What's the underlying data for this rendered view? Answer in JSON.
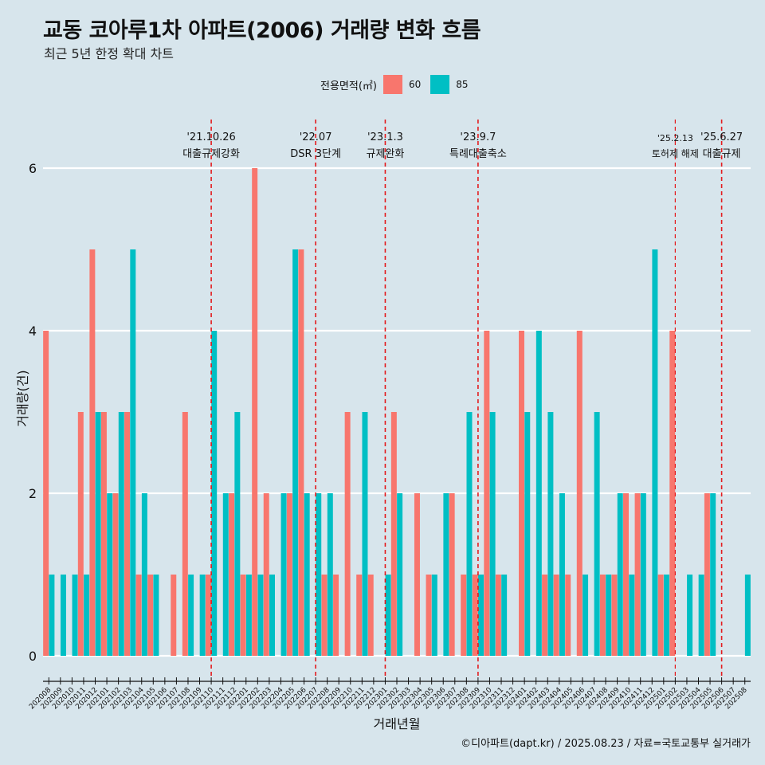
{
  "header": {
    "title": "교동 코아루1차 아파트(2006) 거래량 변화 흐름",
    "subtitle": "최근 5년 한정 확대 차트"
  },
  "legend": {
    "title": "전용면적(㎡)",
    "items": [
      {
        "label": "60",
        "color": "#f8766d"
      },
      {
        "label": "85",
        "color": "#00bfc4"
      }
    ]
  },
  "caption": "©디아파트(dapt.kr) / 2025.08.23 / 자료=국토교통부 실거래가",
  "chart_data": {
    "type": "bar",
    "xlabel": "거래년월",
    "ylabel": "거래량(건)",
    "ylim": [
      0,
      6
    ],
    "yticks": [
      0,
      2,
      4,
      6
    ],
    "categories": [
      "202008",
      "202009",
      "202010",
      "202011",
      "202012",
      "202101",
      "202102",
      "202103",
      "202104",
      "202105",
      "202106",
      "202107",
      "202108",
      "202109",
      "202110",
      "202111",
      "202112",
      "202201",
      "202202",
      "202203",
      "202204",
      "202205",
      "202206",
      "202207",
      "202208",
      "202209",
      "202210",
      "202211",
      "202212",
      "202301",
      "202302",
      "202303",
      "202304",
      "202305",
      "202306",
      "202307",
      "202308",
      "202309",
      "202310",
      "202311",
      "202312",
      "202401",
      "202402",
      "202403",
      "202404",
      "202405",
      "202406",
      "202407",
      "202408",
      "202409",
      "202410",
      "202411",
      "202412",
      "202501",
      "202502",
      "202503",
      "202504",
      "202505",
      "202506",
      "202507",
      "202508"
    ],
    "series": [
      {
        "name": "60",
        "color": "#f8766d",
        "values": [
          4,
          0,
          0,
          3,
          5,
          3,
          2,
          3,
          1,
          1,
          0,
          1,
          3,
          0,
          1,
          0,
          2,
          1,
          6,
          2,
          0,
          2,
          5,
          0,
          1,
          1,
          3,
          1,
          1,
          0,
          3,
          0,
          2,
          1,
          0,
          2,
          1,
          1,
          4,
          1,
          0,
          4,
          0,
          1,
          1,
          1,
          4,
          0,
          1,
          1,
          2,
          2,
          0,
          1,
          4,
          0,
          0,
          2,
          0,
          0,
          0
        ]
      },
      {
        "name": "85",
        "color": "#00bfc4",
        "values": [
          1,
          1,
          1,
          1,
          3,
          2,
          3,
          5,
          2,
          1,
          0,
          0,
          1,
          1,
          4,
          2,
          3,
          1,
          1,
          1,
          2,
          5,
          2,
          2,
          2,
          0,
          0,
          3,
          0,
          1,
          2,
          0,
          0,
          1,
          2,
          0,
          3,
          1,
          3,
          1,
          0,
          3,
          4,
          3,
          2,
          0,
          1,
          3,
          1,
          2,
          1,
          2,
          5,
          1,
          0,
          1,
          1,
          2,
          0,
          0,
          1
        ]
      }
    ],
    "annotations": [
      {
        "category": "202110",
        "date": "'21.10.26",
        "label": "대출규제강화"
      },
      {
        "category": "202207",
        "date": "'22.07",
        "label": "DSR 3단계"
      },
      {
        "category": "202301",
        "date": "'23.1.3",
        "label": "규제완화"
      },
      {
        "category": "202309",
        "date": "'23.9.7",
        "label": "특례대출축소"
      },
      {
        "category": "202502",
        "date": "'25.2.13",
        "label": "토허제 해제"
      },
      {
        "category": "202506",
        "date": "'25.6.27",
        "label": "대출규제"
      }
    ]
  }
}
